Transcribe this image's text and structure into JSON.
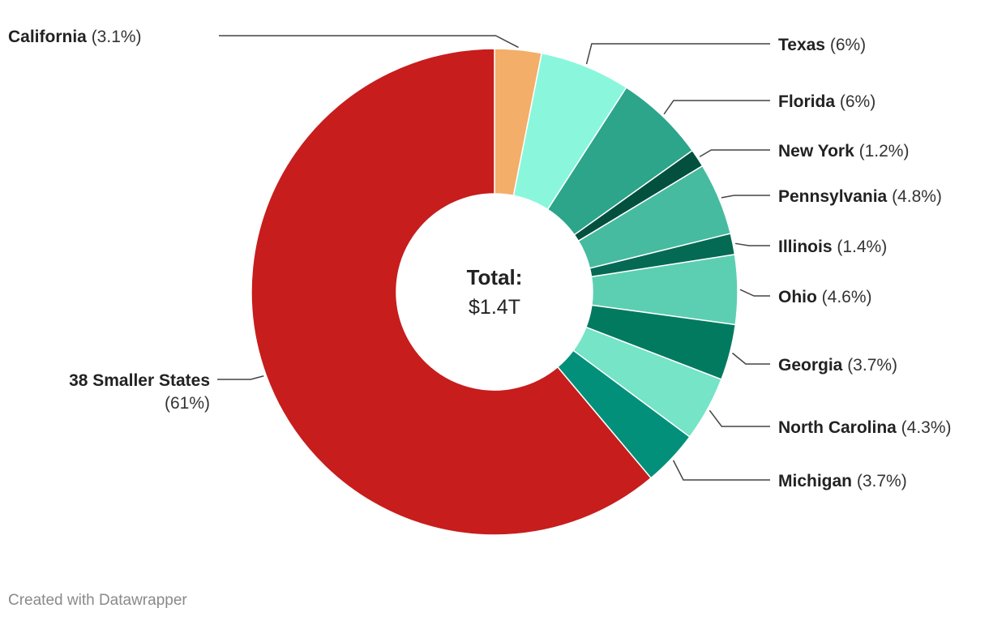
{
  "chart_data": {
    "type": "pie",
    "subtype": "donut",
    "center": {
      "title": "Total:",
      "value": "$1.4T"
    },
    "slices": [
      {
        "name": "California",
        "pct_label": "(3.1%)",
        "value": 3.1,
        "color": "#f3ae69"
      },
      {
        "name": "Texas",
        "pct_label": "(6%)",
        "value": 6,
        "color": "#8af7dd"
      },
      {
        "name": "Florida",
        "pct_label": "(6%)",
        "value": 6,
        "color": "#2ca58a"
      },
      {
        "name": "New York",
        "pct_label": "(1.2%)",
        "value": 1.2,
        "color": "#03503f"
      },
      {
        "name": "Pennsylvania",
        "pct_label": "(4.8%)",
        "value": 4.8,
        "color": "#46bb9f"
      },
      {
        "name": "Illinois",
        "pct_label": "(1.4%)",
        "value": 1.4,
        "color": "#056a54"
      },
      {
        "name": "Ohio",
        "pct_label": "(4.6%)",
        "value": 4.6,
        "color": "#5ccfb2"
      },
      {
        "name": "Georgia",
        "pct_label": "(3.7%)",
        "value": 3.7,
        "color": "#027a5f"
      },
      {
        "name": "North Carolina",
        "pct_label": "(4.3%)",
        "value": 4.3,
        "color": "#75e4c7"
      },
      {
        "name": "Michigan",
        "pct_label": "(3.7%)",
        "value": 3.7,
        "color": "#02907a"
      },
      {
        "name": "38 Smaller States",
        "pct_label": "(61%)",
        "value": 61,
        "color": "#c71d1d"
      }
    ]
  },
  "footer": {
    "credit": "Created with Datawrapper"
  }
}
